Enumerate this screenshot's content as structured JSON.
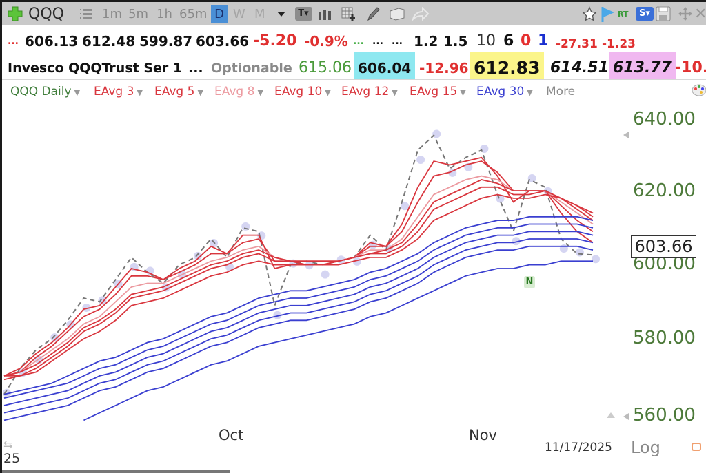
{
  "toolbar": {
    "symbol": "QQQ",
    "periods": [
      "1m",
      "5m",
      "1h",
      "65m",
      "D",
      "W",
      "M"
    ],
    "active_period": "D",
    "icons": [
      "add-icon",
      "list-icon",
      "dropdown-icon",
      "text-tool-icon",
      "bar-chart-icon",
      "grid-add-icon",
      "pencil-icon",
      "folder-icon",
      "share-icon",
      "star-icon",
      "flag-icon",
      "realtime-icon",
      "s-menu-icon",
      "save-icon",
      "move-icon",
      "close-icon"
    ],
    "rt_label": "RT",
    "s_label": "S"
  },
  "quote": {
    "ellipsis_red": "...",
    "open": "606.13",
    "high": "612.48",
    "low": "599.87",
    "close": "603.66",
    "change": "-5.20",
    "change_pct": "-0.9%",
    "dots_green": "...",
    "dots1": "...",
    "dots2": "...",
    "v1": "1.2",
    "v2": "1.5",
    "v3": "10",
    "v4": "6",
    "v5": "0",
    "v6": "1",
    "v7": "-27.31",
    "v8": "-1.23",
    "name": "Invesco QQQTrust Ser 1",
    "name_dots": "...",
    "optionable": "Optionable",
    "g1": "615.06",
    "cyan_val": "606.04",
    "r1": "-12.96",
    "yellow_val": "612.83",
    "italic1": "614.51",
    "pink_val": "613.77",
    "r2": "-10."
  },
  "legend": {
    "items": [
      {
        "label": "QQQ Daily",
        "color": "#3f7d3a"
      },
      {
        "label": "EAvg 3",
        "color": "#d9363e"
      },
      {
        "label": "EAvg 5",
        "color": "#d9363e"
      },
      {
        "label": "EAvg 8",
        "color": "#ec9aa0"
      },
      {
        "label": "EAvg 10",
        "color": "#d9363e"
      },
      {
        "label": "EAvg 12",
        "color": "#d9363e"
      },
      {
        "label": "EAvg 15",
        "color": "#d9363e"
      },
      {
        "label": "EAvg 30",
        "color": "#3a3fd0"
      }
    ],
    "more": "More"
  },
  "axis": {
    "y_labels": [
      "640.00",
      "620.00",
      "600.00",
      "580.00",
      "560.00"
    ],
    "last_price": "603.66",
    "x_labels": [
      "Oct",
      "Nov"
    ],
    "date": "11/17/2025",
    "left_corner": "25",
    "log": "Log"
  },
  "marker": {
    "label": "N"
  },
  "chart_data": {
    "type": "line",
    "title": "QQQ Daily",
    "xlabel": "",
    "ylabel": "",
    "ylim": [
      557,
      645
    ],
    "x_ticks": [
      "Oct",
      "Nov"
    ],
    "y_ticks": [
      560,
      580,
      600,
      620,
      640
    ],
    "last_date": "11/17/2025",
    "last_price": 603.66,
    "series": [
      {
        "name": "QQQ Daily (close)",
        "style": "dashed gray",
        "values": [
          566,
          573,
          578,
          581,
          586,
          592,
          591,
          597,
          603,
          599,
          596,
          601,
          603,
          608,
          603,
          611,
          610,
          590,
          601,
          602,
          601,
          602,
          603,
          609,
          605,
          618,
          632,
          636,
          627,
          630,
          632,
          620,
          610,
          624,
          622,
          608,
          604,
          603.66
        ]
      },
      {
        "name": "EAvg 3",
        "color": "#d9363e",
        "values": [
          571,
          573,
          577,
          580,
          584,
          589,
          590,
          595,
          600,
          599,
          597,
          600,
          602,
          606,
          604,
          609,
          609,
          600,
          601,
          601,
          601,
          602,
          603,
          607,
          606,
          612,
          622,
          629,
          628,
          629,
          630,
          625,
          618,
          621,
          621,
          615,
          610,
          607
        ]
      },
      {
        "name": "EAvg 5",
        "color": "#d9363e",
        "values": [
          571,
          572,
          576,
          579,
          583,
          587,
          589,
          593,
          598,
          598,
          597,
          599,
          601,
          604,
          604,
          607,
          608,
          602,
          602,
          601,
          601,
          602,
          603,
          606,
          606,
          610,
          618,
          625,
          626,
          628,
          629,
          626,
          621,
          621,
          621,
          617,
          613,
          610
        ]
      },
      {
        "name": "EAvg 8",
        "color": "#ec9aa0",
        "values": [
          571,
          572,
          575,
          578,
          581,
          585,
          587,
          591,
          595,
          596,
          596,
          598,
          600,
          602,
          603,
          605,
          606,
          603,
          602,
          602,
          602,
          602,
          603,
          605,
          605,
          608,
          614,
          620,
          622,
          624,
          625,
          624,
          621,
          621,
          621,
          618,
          615,
          612
        ]
      },
      {
        "name": "EAvg 10",
        "color": "#d9363e",
        "values": [
          571,
          572,
          574,
          577,
          580,
          584,
          586,
          589,
          593,
          594,
          595,
          597,
          599,
          601,
          602,
          604,
          605,
          603,
          602,
          602,
          602,
          602,
          603,
          604,
          605,
          607,
          612,
          618,
          620,
          622,
          624,
          623,
          621,
          621,
          621,
          619,
          616,
          613
        ]
      },
      {
        "name": "EAvg 12",
        "color": "#d9363e",
        "values": [
          571,
          571,
          573,
          576,
          579,
          583,
          585,
          588,
          592,
          593,
          594,
          596,
          598,
          600,
          601,
          603,
          604,
          602,
          602,
          602,
          602,
          602,
          603,
          604,
          604,
          606,
          610,
          616,
          618,
          620,
          622,
          622,
          620,
          620,
          621,
          619,
          617,
          614
        ]
      },
      {
        "name": "EAvg 15",
        "color": "#d9363e",
        "values": [
          570,
          571,
          572,
          575,
          578,
          581,
          583,
          586,
          590,
          591,
          592,
          594,
          596,
          598,
          599,
          601,
          602,
          601,
          601,
          601,
          601,
          601,
          602,
          603,
          603,
          605,
          608,
          613,
          615,
          617,
          619,
          620,
          619,
          619,
          620,
          619,
          617,
          615
        ]
      },
      {
        "name": "EAvg 30 (band 1)",
        "color": "#3a3fd0",
        "values": [
          566,
          567,
          568,
          569,
          571,
          573,
          575,
          576,
          578,
          580,
          581,
          583,
          585,
          587,
          588,
          590,
          592,
          593,
          594,
          594,
          595,
          596,
          597,
          599,
          600,
          602,
          604,
          607,
          609,
          611,
          612,
          613,
          613,
          614,
          614,
          614,
          614,
          613
        ]
      },
      {
        "name": "EAvg 30 (band 2)",
        "color": "#3a3fd0",
        "values": [
          565,
          566,
          567,
          568,
          569,
          571,
          573,
          574,
          576,
          578,
          579,
          581,
          583,
          585,
          586,
          588,
          590,
          591,
          592,
          592,
          593,
          594,
          595,
          597,
          598,
          600,
          602,
          605,
          607,
          609,
          610,
          611,
          611,
          612,
          612,
          612,
          612,
          611
        ]
      },
      {
        "name": "EAvg 30 (band 3)",
        "color": "#3a3fd0",
        "values": [
          563,
          564,
          565,
          566,
          567,
          569,
          571,
          572,
          574,
          576,
          577,
          579,
          581,
          583,
          584,
          586,
          588,
          589,
          590,
          590,
          591,
          592,
          593,
          595,
          596,
          598,
          600,
          603,
          605,
          607,
          608,
          609,
          609,
          610,
          610,
          610,
          610,
          609
        ]
      },
      {
        "name": "EAvg 30 (band 4)",
        "color": "#3a3fd0",
        "values": [
          561,
          562,
          563,
          564,
          565,
          567,
          569,
          570,
          572,
          574,
          575,
          577,
          579,
          581,
          582,
          584,
          586,
          587,
          588,
          588,
          589,
          590,
          591,
          593,
          594,
          596,
          598,
          601,
          603,
          605,
          606,
          607,
          607,
          608,
          608,
          608,
          608,
          607
        ]
      },
      {
        "name": "EAvg 30 (band 5)",
        "color": "#3a3fd0",
        "values": [
          559,
          560,
          561,
          562,
          563,
          565,
          567,
          568,
          570,
          572,
          573,
          575,
          577,
          579,
          580,
          582,
          584,
          585,
          586,
          586,
          587,
          588,
          589,
          591,
          592,
          594,
          596,
          599,
          601,
          603,
          604,
          605,
          605,
          606,
          606,
          606,
          606,
          605
        ]
      },
      {
        "name": "EAvg 30 (band 6)",
        "color": "#3a3fd0",
        "values": [
          null,
          null,
          null,
          null,
          null,
          559,
          561,
          563,
          565,
          567,
          568,
          570,
          572,
          574,
          575,
          577,
          579,
          580,
          581,
          582,
          583,
          584,
          585,
          587,
          588,
          590,
          592,
          594,
          596,
          598,
          599,
          600,
          600,
          601,
          601,
          602,
          602,
          602
        ]
      }
    ],
    "annotations": [
      {
        "label": "N",
        "near": "11/10/2025",
        "price": 600
      }
    ],
    "legend_position": "top",
    "grid": false
  }
}
